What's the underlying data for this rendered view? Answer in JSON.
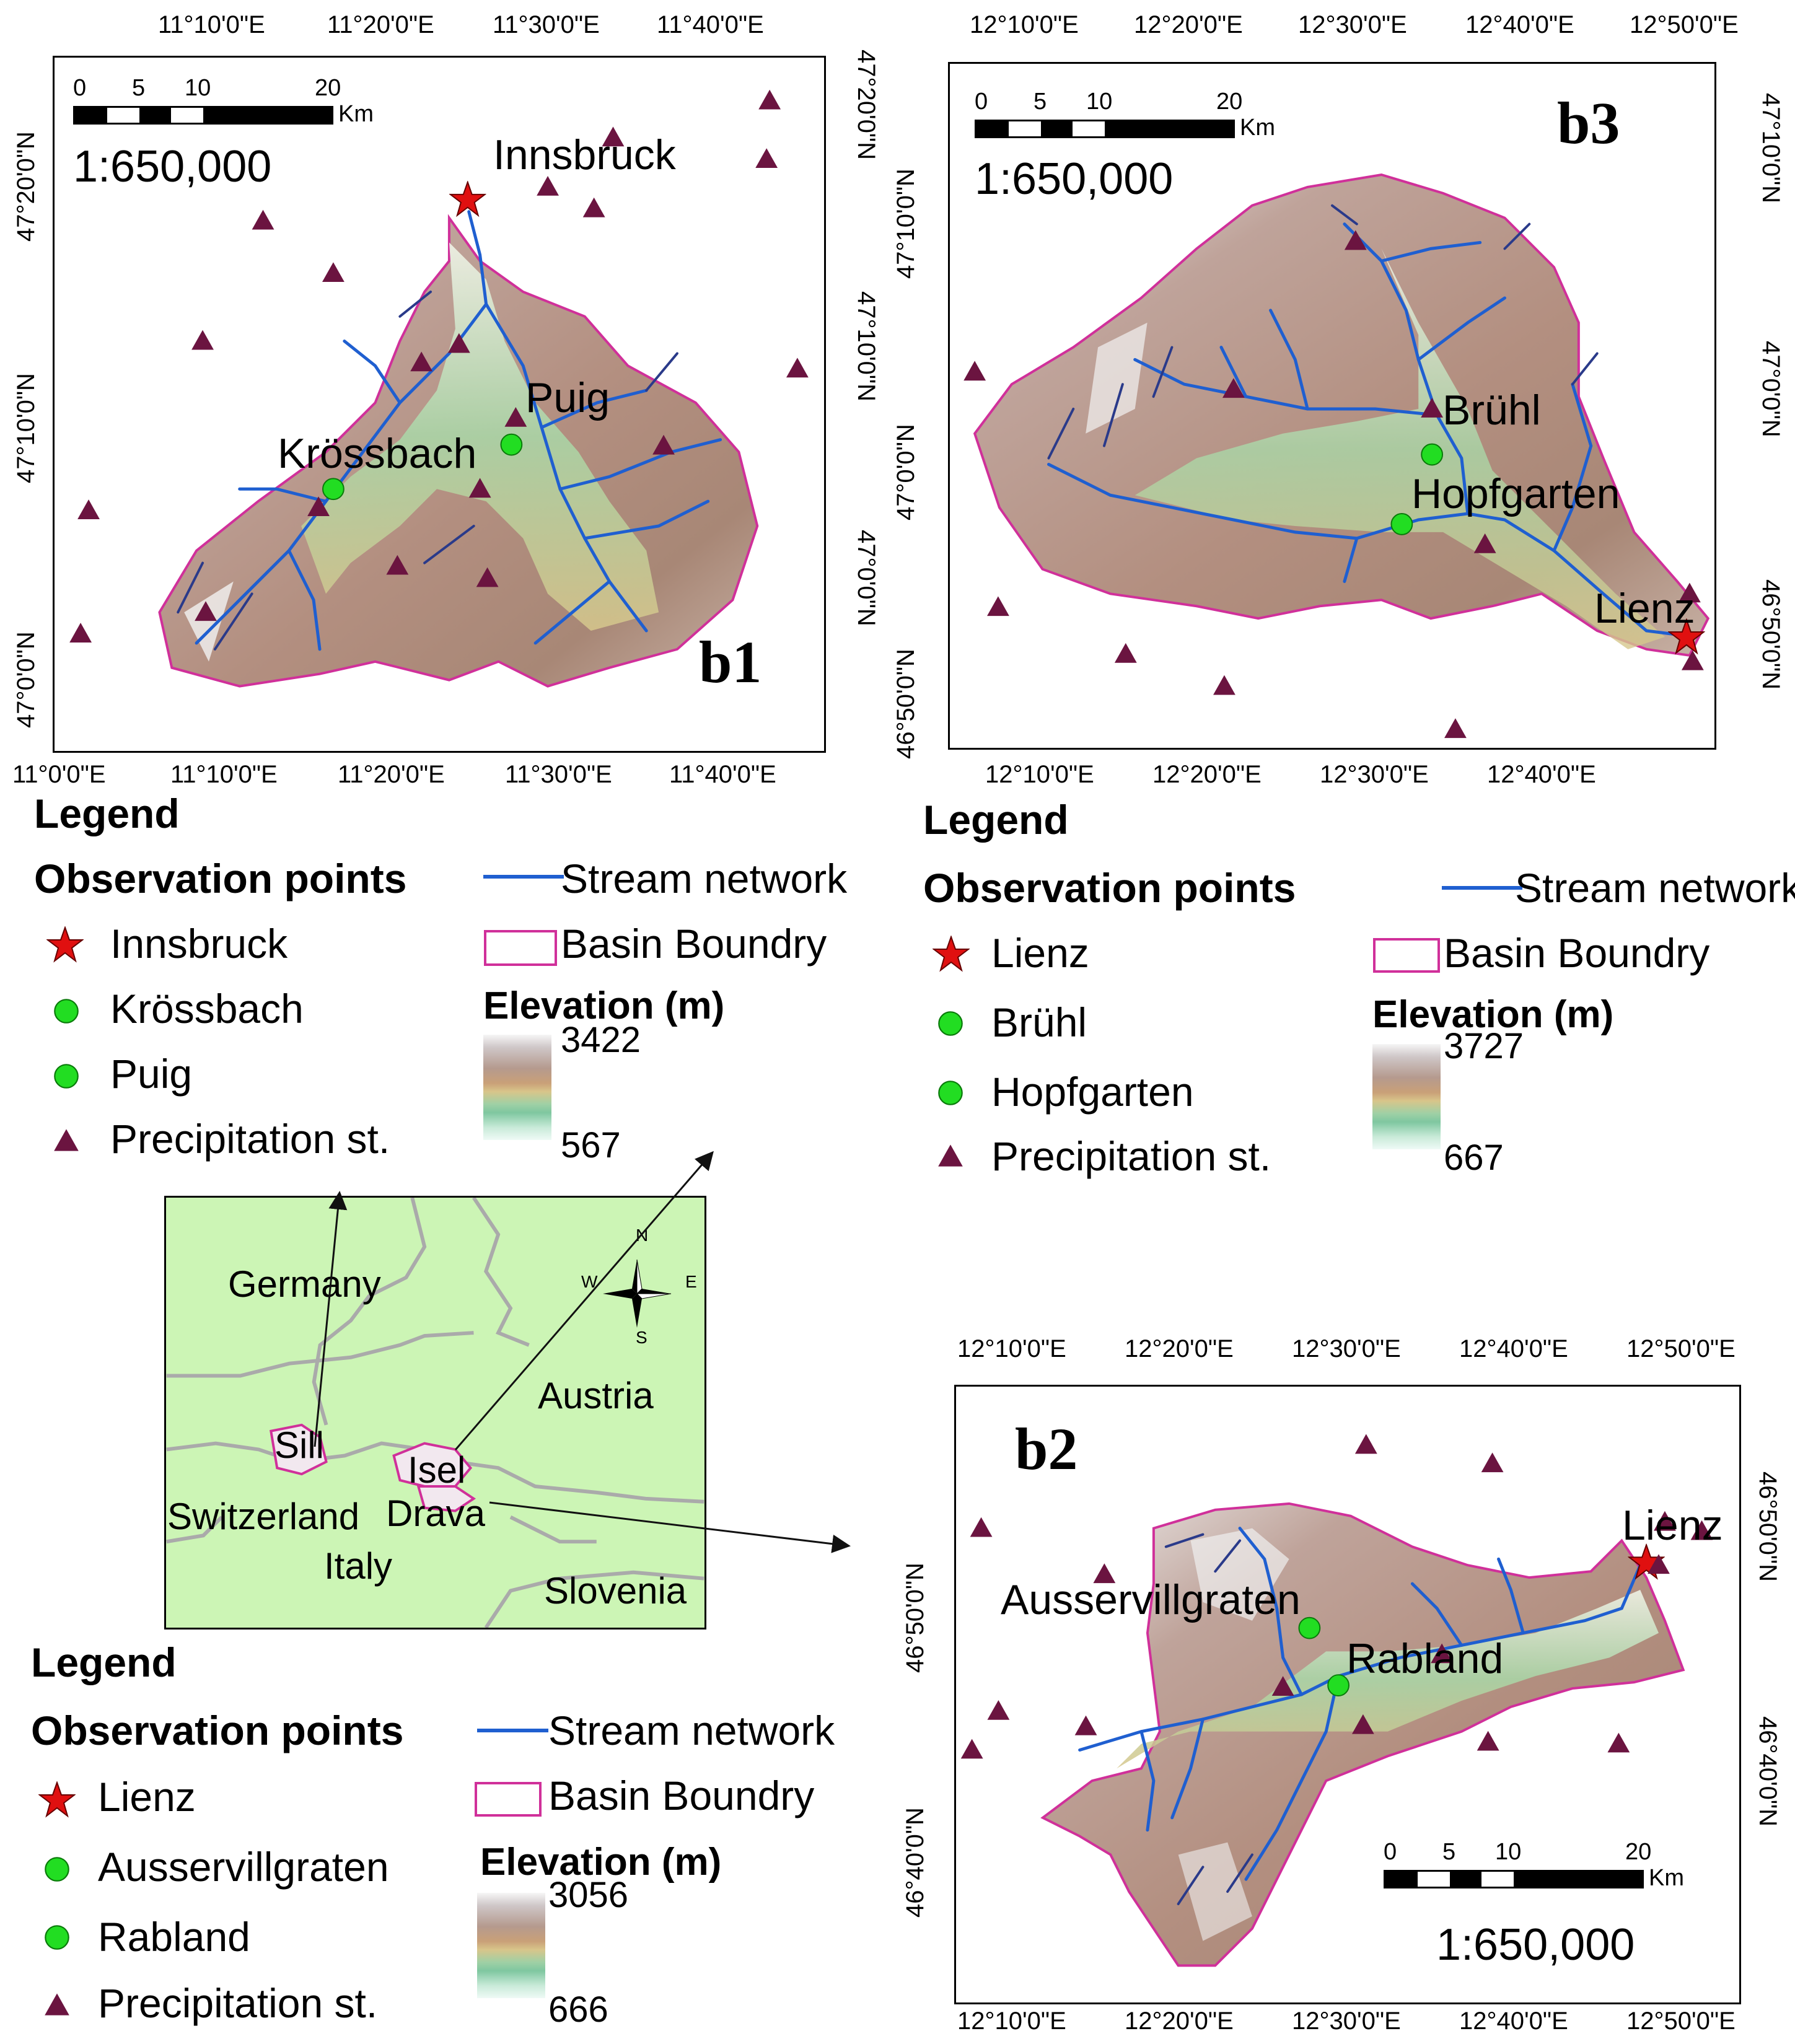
{
  "panel_b1": {
    "label": "b1",
    "top_coords": [
      "11°10'0\"E",
      "11°20'0\"E",
      "11°30'0\"E",
      "11°40'0\"E"
    ],
    "bottom_coords": [
      "11°0'0\"E",
      "11°10'0\"E",
      "11°20'0\"E",
      "11°30'0\"E",
      "11°40'0\"E"
    ],
    "left_coords": [
      "47°20'0\"N",
      "47°10'0\"N",
      "47°0'0\"N"
    ],
    "right_coords": [
      "47°20'0\"N",
      "47°10'0\"N",
      "47°0'0\"N"
    ],
    "scale_ticks": [
      "0",
      "5",
      "10",
      "20"
    ],
    "scale_unit": "Km",
    "scale_ratio": "1:650,000",
    "places": {
      "outlet": "Innsbruck",
      "obs1": "Krössbach",
      "obs2": "Puig"
    }
  },
  "panel_b3": {
    "label": "b3",
    "top_coords": [
      "12°10'0\"E",
      "12°20'0\"E",
      "12°30'0\"E",
      "12°40'0\"E",
      "12°50'0\"E"
    ],
    "bottom_coords": [
      "12°10'0\"E",
      "12°20'0\"E",
      "12°30'0\"E",
      "12°40'0\"E"
    ],
    "left_coords": [
      "47°10'0\"N",
      "47°0'0\"N",
      "46°50'0\"N"
    ],
    "right_coords": [
      "47°10'0\"N",
      "47°0'0\"N",
      "46°50'0\"N"
    ],
    "scale_ticks": [
      "0",
      "5",
      "10",
      "20"
    ],
    "scale_unit": "Km",
    "scale_ratio": "1:650,000",
    "places": {
      "outlet": "Lienz",
      "obs1": "Brühl",
      "obs2": "Hopfgarten"
    }
  },
  "panel_b2": {
    "label": "b2",
    "top_coords": [
      "12°10'0\"E",
      "12°20'0\"E",
      "12°30'0\"E",
      "12°40'0\"E",
      "12°50'0\"E"
    ],
    "bottom_coords": [
      "12°10'0\"E",
      "12°20'0\"E",
      "12°30'0\"E",
      "12°40'0\"E",
      "12°50'0\"E"
    ],
    "left_coords": [
      "46°50'0\"N",
      "46°40'0\"N"
    ],
    "right_coords": [
      "46°50'0\"N",
      "46°40'0\"N"
    ],
    "scale_ticks": [
      "0",
      "5",
      "10",
      "20"
    ],
    "scale_unit": "Km",
    "scale_ratio": "1:650,000",
    "places": {
      "outlet": "Lienz",
      "obs1": "Ausservillgraten",
      "obs2": "Rabland"
    }
  },
  "legend_b1": {
    "title": "Legend",
    "obs_header": "Observation points",
    "stream": "Stream network",
    "basin": "Basin Boundry",
    "items": [
      "Innsbruck",
      "Krössbach",
      "Puig",
      "Precipitation st."
    ],
    "elev_title": "Elevation (m)",
    "elev_max": "3422",
    "elev_min": "567"
  },
  "legend_b3": {
    "title": "Legend",
    "obs_header": "Observation points",
    "stream": "Stream network",
    "basin": "Basin Boundry",
    "items": [
      "Lienz",
      "Brühl",
      "Hopfgarten",
      "Precipitation st."
    ],
    "elev_title": "Elevation (m)",
    "elev_max": "3727",
    "elev_min": "667"
  },
  "legend_b2": {
    "title": "Legend",
    "obs_header": "Observation points",
    "stream": "Stream network",
    "basin": "Basin Boundry",
    "items": [
      "Lienz",
      "Ausservillgraten",
      "Rabland",
      "Precipitation st."
    ],
    "elev_title": "Elevation (m)",
    "elev_max": "3056",
    "elev_min": "666"
  },
  "inset": {
    "countries": [
      "Germany",
      "Austria",
      "Switzerland",
      "Italy",
      "Slovenia"
    ],
    "basins": [
      "Sill",
      "Isel",
      "Drava"
    ],
    "compass": [
      "N",
      "E",
      "S",
      "W"
    ]
  },
  "colors": {
    "stream": "#1f5fd0",
    "basin_boundary": "#d0309a",
    "outlet_star": "#e01010",
    "obs_point": "#22dd22",
    "precip": "#6b1440",
    "inset_land": "#ccf5b5",
    "border_line": "#aaaaaa"
  }
}
